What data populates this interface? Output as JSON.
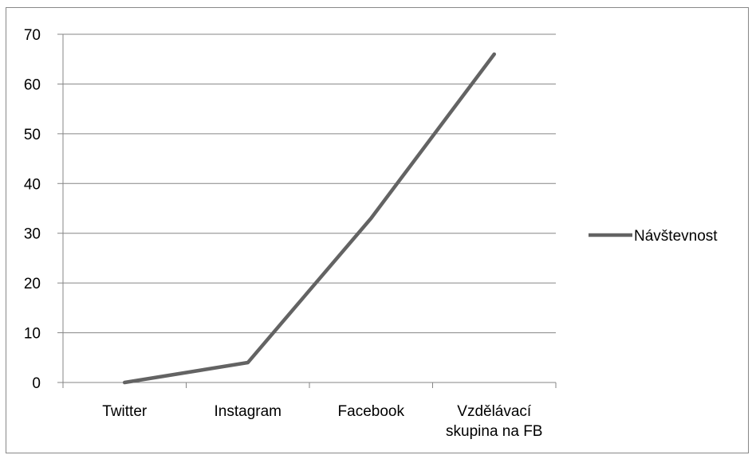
{
  "chart_data": {
    "type": "line",
    "categories": [
      "Twitter",
      "Instagram",
      "Facebook",
      "Vzdělávací skupina na FB"
    ],
    "category_lines": [
      [
        "Twitter"
      ],
      [
        "Instagram"
      ],
      [
        "Facebook"
      ],
      [
        "Vzdělávací",
        "skupina na FB"
      ]
    ],
    "series": [
      {
        "name": "Návštevnost",
        "values": [
          0,
          4,
          33,
          66
        ],
        "color": "#636363"
      }
    ],
    "ylim": [
      0,
      70
    ],
    "yticks": [
      0,
      10,
      20,
      30,
      40,
      50,
      60,
      70
    ],
    "grid": true,
    "legend": "right",
    "gridline_color": "#868686"
  }
}
